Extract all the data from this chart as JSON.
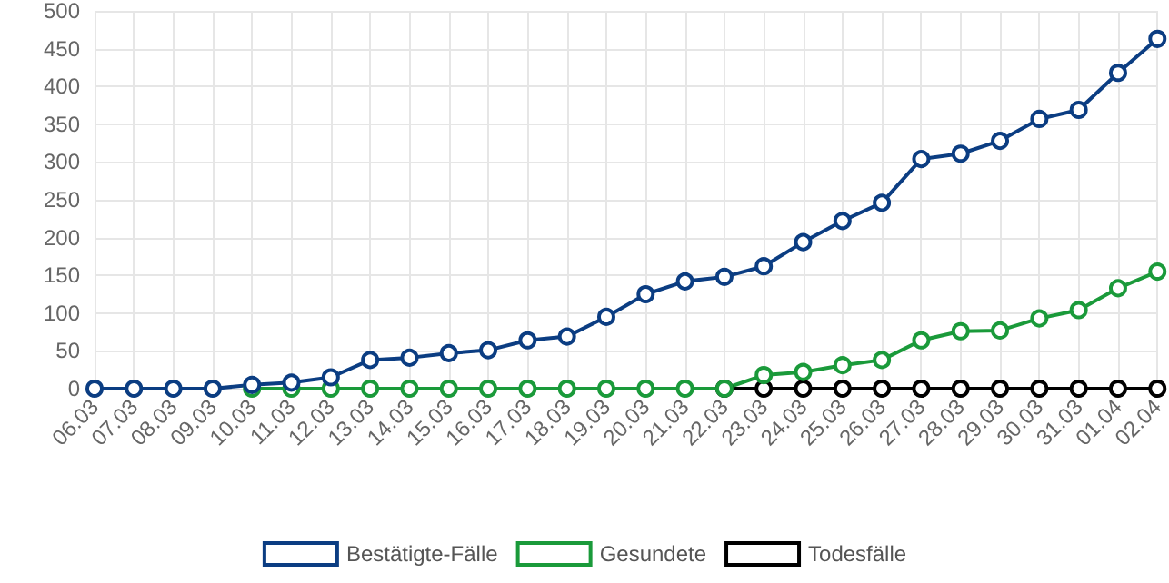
{
  "chart_data": {
    "type": "line",
    "categories": [
      "06.03",
      "07.03",
      "08.03",
      "09.03",
      "10.03",
      "11.03",
      "12.03",
      "13.03",
      "14.03",
      "15.03",
      "16.03",
      "17.03",
      "18.03",
      "19.03",
      "20.03",
      "21.03",
      "22.03",
      "23.03",
      "24.03",
      "25.03",
      "26.03",
      "27.03",
      "28.03",
      "29.03",
      "30.03",
      "31.03",
      "01.04",
      "02.04"
    ],
    "series": [
      {
        "name": "Bestätigte-Fälle",
        "color": "#0b3d82",
        "values": [
          0,
          0,
          0,
          0,
          5,
          8,
          15,
          38,
          41,
          47,
          51,
          64,
          69,
          95,
          125,
          142,
          148,
          162,
          194,
          222,
          246,
          304,
          311,
          328,
          357,
          369,
          418,
          463
        ]
      },
      {
        "name": "Gesundete",
        "color": "#1a9a3a",
        "values": [
          null,
          null,
          null,
          null,
          0,
          0,
          0,
          0,
          0,
          0,
          0,
          0,
          0,
          0,
          0,
          0,
          0,
          18,
          22,
          31,
          38,
          64,
          76,
          77,
          93,
          104,
          133,
          155
        ]
      },
      {
        "name": "Todesfälle",
        "color": "#000000",
        "values": [
          null,
          null,
          null,
          null,
          null,
          null,
          null,
          null,
          null,
          null,
          null,
          null,
          null,
          null,
          null,
          null,
          0,
          0,
          0,
          0,
          0,
          0,
          0,
          0,
          0,
          0,
          0,
          0
        ]
      }
    ],
    "ylim": [
      0,
      500
    ],
    "yticks": [
      0,
      50,
      100,
      150,
      200,
      250,
      300,
      350,
      400,
      450,
      500
    ],
    "grid": true,
    "legend": "bottom",
    "marker": "circle",
    "line_style": "solid"
  }
}
